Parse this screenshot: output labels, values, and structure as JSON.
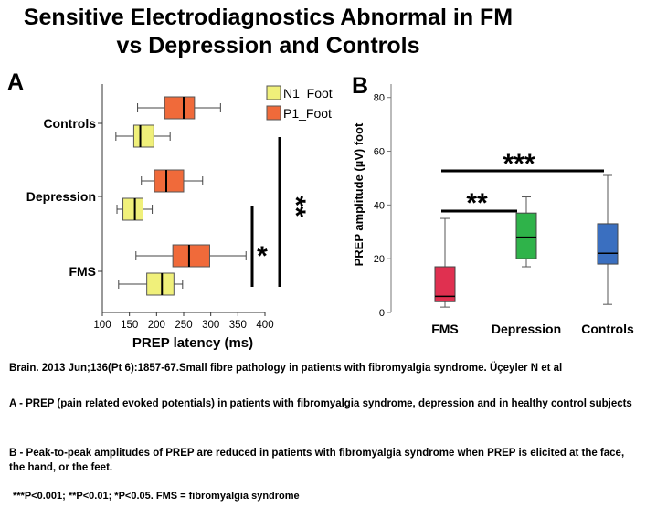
{
  "header": {
    "title_line1": "Sensitive Electrodiagnostics Abnormal in FM",
    "title_line2": "vs Depression and Controls"
  },
  "panels": {
    "a": "A",
    "b": "B"
  },
  "chart_data": [
    {
      "panel": "A",
      "type": "boxplot-horizontal",
      "xlabel": "PREP latency (ms)",
      "xlim": [
        100,
        400
      ],
      "xticks": [
        "100",
        "150",
        "200",
        "250",
        "300",
        "350",
        "400"
      ],
      "categories": [
        "Controls",
        "Depression",
        "FMS"
      ],
      "legend": {
        "position": "top-right",
        "items": [
          {
            "name": "N1_Foot",
            "color": "#f0f07a"
          },
          {
            "name": "P1_Foot",
            "color": "#f06a3a"
          }
        ]
      },
      "series": [
        {
          "name": "P1_Foot",
          "color": "#f06a3a",
          "boxes": [
            {
              "category": "Controls",
              "min": 165,
              "q1": 215,
              "median": 250,
              "q3": 270,
              "max": 318
            },
            {
              "category": "Depression",
              "min": 172,
              "q1": 196,
              "median": 218,
              "q3": 250,
              "max": 285
            },
            {
              "category": "FMS",
              "min": 162,
              "q1": 230,
              "median": 260,
              "q3": 298,
              "max": 365
            }
          ]
        },
        {
          "name": "N1_Foot",
          "color": "#f0f07a",
          "boxes": [
            {
              "category": "Controls",
              "min": 125,
              "q1": 158,
              "median": 170,
              "q3": 195,
              "max": 225
            },
            {
              "category": "Depression",
              "min": 127,
              "q1": 138,
              "median": 160,
              "q3": 175,
              "max": 192
            },
            {
              "category": "FMS",
              "min": 130,
              "q1": 182,
              "median": 210,
              "q3": 232,
              "max": 248
            }
          ]
        }
      ],
      "annotations": [
        {
          "label": "*",
          "between": [
            "Depression",
            "FMS"
          ]
        },
        {
          "label": "**",
          "between": [
            "Controls",
            "FMS"
          ]
        }
      ]
    },
    {
      "panel": "B",
      "type": "boxplot",
      "ylabel": "PREP amplitude (µV) foot",
      "ylim": [
        0,
        85
      ],
      "yticks": [
        "0",
        "20",
        "40",
        "60",
        "80"
      ],
      "categories": [
        "FMS",
        "Depression",
        "Controls"
      ],
      "boxes": [
        {
          "category": "FMS",
          "color": "#e03050",
          "min": 2,
          "q1": 4,
          "median": 6,
          "q3": 17,
          "max": 35
        },
        {
          "category": "Depression",
          "color": "#2fb34a",
          "min": 17,
          "q1": 20,
          "median": 28,
          "q3": 37,
          "max": 43
        },
        {
          "category": "Controls",
          "color": "#3a6fc0",
          "min": 3,
          "q1": 18,
          "median": 22,
          "q3": 33,
          "max": 51
        }
      ],
      "annotations": [
        {
          "label": "**",
          "between": [
            "FMS",
            "Depression"
          ]
        },
        {
          "label": "***",
          "between": [
            "FMS",
            "Controls"
          ]
        }
      ]
    }
  ],
  "captions": {
    "citation": "Brain. 2013 Jun;136(Pt 6):1857-67.Small fibre pathology in patients with fibromyalgia syndrome. Üçeyler N et al",
    "a": "A - PREP (pain related evoked potentials) in patients with fibromyalgia syndrome, depression and in healthy control subjects",
    "b": "B - Peak-to-peak amplitudes of PREP are reduced in patients with fibromyalgia syndrome when PREP is elicited at the face, the hand, or the feet.",
    "footnote": "***P<0.001; **P<0.01; *P<0.05. FMS = fibromyalgia syndrome"
  }
}
